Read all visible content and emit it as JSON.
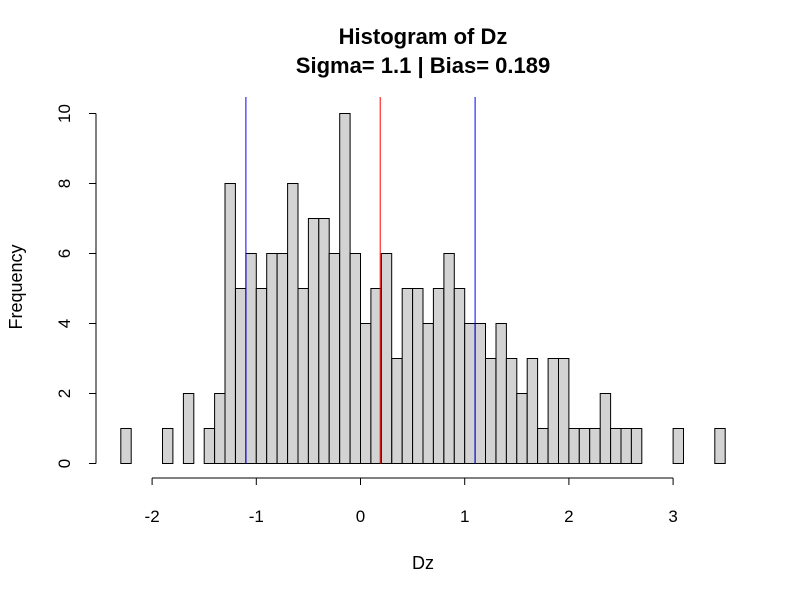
{
  "chart_data": {
    "type": "bar",
    "title": "Histogram of Dz",
    "subtitle": "Sigma= 1.1 | Bias= 0.189",
    "xlabel": "Dz",
    "ylabel": "Frequency",
    "bin_width": 0.1,
    "bin_start": -2.3,
    "values": [
      1,
      0,
      0,
      0,
      1,
      0,
      2,
      0,
      1,
      2,
      8,
      5,
      6,
      5,
      6,
      6,
      8,
      5,
      7,
      7,
      6,
      10,
      6,
      4,
      5,
      6,
      3,
      5,
      5,
      4,
      5,
      6,
      5,
      4,
      4,
      3,
      4,
      3,
      2,
      3,
      1,
      3,
      3,
      1,
      1,
      1,
      2,
      1,
      1,
      1,
      0,
      0,
      0,
      1,
      0,
      0,
      0,
      1
    ],
    "xlim": [
      -2.3,
      3.5
    ],
    "ylim": [
      0,
      10
    ],
    "x_ticks": [
      -2,
      -1,
      0,
      1,
      2,
      3
    ],
    "y_ticks": [
      0,
      2,
      4,
      6,
      8,
      10
    ],
    "bar_color": "#d3d3d3",
    "vlines": [
      {
        "x": -1.1,
        "color": "#0000ff"
      },
      {
        "x": 0.189,
        "color": "#ff0000"
      },
      {
        "x": 1.1,
        "color": "#0000ff"
      }
    ],
    "grid": false,
    "legend": "none"
  }
}
